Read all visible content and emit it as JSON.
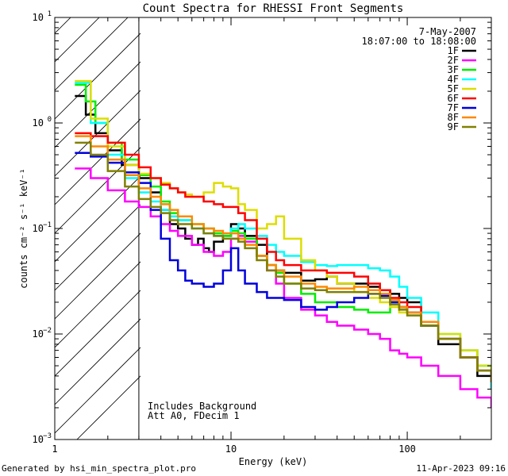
{
  "chart_data": {
    "type": "line",
    "title": "Count Spectra for RHESSI Front Segments",
    "xlabel": "Energy (keV)",
    "ylabel": "counts cm⁻² s⁻¹ keV⁻¹",
    "xscale": "log",
    "yscale": "log",
    "xlim": [
      1,
      300
    ],
    "ylim": [
      0.001,
      10
    ],
    "x_ticks": [
      {
        "value": 1,
        "label": "1"
      },
      {
        "value": 10,
        "label": "10"
      },
      {
        "value": 100,
        "label": "100"
      }
    ],
    "y_ticks": [
      {
        "value": 0.001,
        "base": "10",
        "exp": "−3"
      },
      {
        "value": 0.01,
        "base": "10",
        "exp": "−2"
      },
      {
        "value": 0.1,
        "base": "10",
        "exp": "−1"
      },
      {
        "value": 1,
        "base": "10",
        "exp": "0"
      },
      {
        "value": 10,
        "base": "10",
        "exp": "1"
      }
    ],
    "hatched_region": [
      1,
      3
    ],
    "date_text": "7-May-2007",
    "time_range_text": "18:07:00 to 18:08:00",
    "notes": [
      "Includes Background",
      "Att A0, FDecim 1"
    ],
    "footer_left": "Generated by hsi_min_spectra_plot.pro",
    "footer_right": "11-Apr-2023 09:16",
    "series": [
      {
        "name": "1F",
        "color": "#000000",
        "x": [
          1.3,
          1.5,
          1.7,
          2.0,
          2.4,
          3.0,
          3.5,
          4.0,
          4.5,
          5.0,
          5.5,
          6.0,
          6.5,
          7.0,
          7.5,
          8.0,
          9.0,
          10.0,
          11.0,
          12.0,
          14.0,
          16.0,
          18.0,
          20.0,
          25.0,
          30.0,
          35.0,
          40.0,
          50.0,
          60.0,
          70.0,
          80.0,
          90.0,
          100.0,
          120.0,
          150.0,
          200.0,
          250.0,
          300.0
        ],
        "y": [
          1.8,
          1.2,
          0.8,
          0.55,
          0.4,
          0.3,
          0.22,
          0.15,
          0.11,
          0.1,
          0.08,
          0.07,
          0.08,
          0.065,
          0.06,
          0.075,
          0.085,
          0.11,
          0.1,
          0.085,
          0.07,
          0.045,
          0.04,
          0.038,
          0.032,
          0.033,
          0.035,
          0.03,
          0.03,
          0.028,
          0.026,
          0.024,
          0.022,
          0.02,
          0.012,
          0.008,
          0.006,
          0.004,
          0.003
        ]
      },
      {
        "name": "2F",
        "color": "#ff00ff",
        "x": [
          1.3,
          1.6,
          2.0,
          2.5,
          3.0,
          3.5,
          4.0,
          4.5,
          5.0,
          6.0,
          7.0,
          8.0,
          9.0,
          10.0,
          11.0,
          12.0,
          14.0,
          16.0,
          18.0,
          20.0,
          25.0,
          30.0,
          35.0,
          40.0,
          50.0,
          60.0,
          70.0,
          80.0,
          90.0,
          100.0,
          120.0,
          150.0,
          200.0,
          250.0,
          300.0
        ],
        "y": [
          0.37,
          0.3,
          0.23,
          0.18,
          0.16,
          0.13,
          0.11,
          0.095,
          0.085,
          0.07,
          0.06,
          0.055,
          0.06,
          0.08,
          0.085,
          0.075,
          0.055,
          0.04,
          0.03,
          0.022,
          0.017,
          0.015,
          0.013,
          0.012,
          0.011,
          0.01,
          0.009,
          0.007,
          0.0065,
          0.006,
          0.005,
          0.004,
          0.003,
          0.0025,
          0.002
        ]
      },
      {
        "name": "3F",
        "color": "#00ee00",
        "x": [
          1.3,
          1.5,
          1.7,
          2.0,
          2.4,
          3.0,
          3.5,
          4.0,
          4.5,
          5.0,
          6.0,
          7.0,
          8.0,
          9.0,
          10.0,
          11.0,
          12.0,
          14.0,
          16.0,
          18.0,
          20.0,
          25.0,
          30.0,
          35.0,
          40.0,
          50.0,
          60.0,
          70.0,
          80.0,
          90.0,
          100.0,
          120.0,
          150.0,
          200.0,
          250.0,
          300.0
        ],
        "y": [
          2.3,
          1.6,
          1.0,
          0.65,
          0.45,
          0.32,
          0.25,
          0.18,
          0.14,
          0.12,
          0.11,
          0.1,
          0.09,
          0.085,
          0.095,
          0.09,
          0.08,
          0.055,
          0.045,
          0.038,
          0.03,
          0.024,
          0.02,
          0.02,
          0.018,
          0.017,
          0.016,
          0.016,
          0.02,
          0.018,
          0.016,
          0.012,
          0.009,
          0.007,
          0.005,
          0.004
        ]
      },
      {
        "name": "4F",
        "color": "#00ffff",
        "x": [
          1.3,
          1.6,
          2.0,
          2.5,
          3.0,
          3.5,
          4.0,
          4.5,
          5.0,
          6.0,
          7.0,
          8.0,
          9.0,
          10.0,
          11.0,
          12.0,
          14.0,
          16.0,
          18.0,
          20.0,
          25.0,
          30.0,
          35.0,
          40.0,
          50.0,
          60.0,
          70.0,
          80.0,
          90.0,
          100.0,
          120.0,
          150.0,
          200.0,
          250.0,
          300.0
        ],
        "y": [
          2.4,
          1.0,
          0.5,
          0.3,
          0.22,
          0.18,
          0.15,
          0.13,
          0.12,
          0.1,
          0.09,
          0.085,
          0.09,
          0.1,
          0.11,
          0.1,
          0.085,
          0.07,
          0.06,
          0.055,
          0.048,
          0.045,
          0.044,
          0.045,
          0.045,
          0.042,
          0.04,
          0.035,
          0.028,
          0.022,
          0.016,
          0.01,
          0.007,
          0.005,
          0.003
        ]
      },
      {
        "name": "5F",
        "color": "#dddd00",
        "x": [
          1.3,
          1.6,
          2.0,
          2.5,
          3.0,
          3.5,
          4.0,
          4.5,
          5.0,
          5.5,
          6.0,
          7.0,
          8.0,
          9.0,
          10.0,
          11.0,
          12.0,
          14.0,
          16.0,
          18.0,
          20.0,
          25.0,
          30.0,
          35.0,
          40.0,
          50.0,
          60.0,
          70.0,
          80.0,
          90.0,
          100.0,
          120.0,
          150.0,
          200.0,
          250.0,
          300.0
        ],
        "y": [
          2.5,
          1.1,
          0.6,
          0.4,
          0.33,
          0.3,
          0.27,
          0.24,
          0.22,
          0.21,
          0.2,
          0.22,
          0.27,
          0.25,
          0.24,
          0.17,
          0.15,
          0.1,
          0.11,
          0.13,
          0.08,
          0.05,
          0.04,
          0.035,
          0.03,
          0.025,
          0.022,
          0.02,
          0.018,
          0.016,
          0.015,
          0.012,
          0.01,
          0.007,
          0.005,
          0.004
        ]
      },
      {
        "name": "6F",
        "color": "#ff0000",
        "x": [
          1.3,
          1.6,
          2.0,
          2.5,
          3.0,
          3.5,
          4.0,
          4.5,
          5.0,
          5.5,
          6.0,
          7.0,
          8.0,
          9.0,
          10.0,
          11.0,
          12.0,
          14.0,
          16.0,
          18.0,
          20.0,
          25.0,
          30.0,
          35.0,
          40.0,
          50.0,
          60.0,
          70.0,
          80.0,
          90.0,
          100.0,
          120.0,
          150.0,
          200.0,
          250.0,
          300.0
        ],
        "y": [
          0.8,
          0.75,
          0.65,
          0.5,
          0.38,
          0.3,
          0.26,
          0.24,
          0.22,
          0.2,
          0.2,
          0.18,
          0.17,
          0.16,
          0.16,
          0.14,
          0.12,
          0.08,
          0.06,
          0.05,
          0.045,
          0.04,
          0.04,
          0.038,
          0.038,
          0.035,
          0.03,
          0.026,
          0.022,
          0.02,
          0.018,
          0.013,
          0.009,
          0.006,
          0.0045,
          0.0035
        ]
      },
      {
        "name": "7F",
        "color": "#0000dd",
        "x": [
          1.3,
          1.6,
          2.0,
          2.5,
          3.0,
          3.5,
          4.0,
          4.5,
          5.0,
          5.5,
          6.0,
          7.0,
          8.0,
          9.0,
          10.0,
          11.0,
          12.0,
          14.0,
          16.0,
          18.0,
          20.0,
          25.0,
          30.0,
          35.0,
          40.0,
          50.0,
          60.0,
          70.0,
          80.0,
          90.0,
          100.0,
          120.0,
          150.0,
          200.0,
          250.0,
          300.0
        ],
        "y": [
          0.52,
          0.48,
          0.42,
          0.34,
          0.27,
          0.15,
          0.08,
          0.05,
          0.04,
          0.032,
          0.03,
          0.028,
          0.03,
          0.04,
          0.065,
          0.04,
          0.03,
          0.025,
          0.022,
          0.022,
          0.021,
          0.018,
          0.017,
          0.018,
          0.02,
          0.022,
          0.024,
          0.023,
          0.02,
          0.018,
          0.016,
          0.012,
          0.009,
          0.006,
          0.0045,
          0.0035
        ]
      },
      {
        "name": "8F",
        "color": "#ff8800",
        "x": [
          1.3,
          1.6,
          2.0,
          2.5,
          3.0,
          3.5,
          4.0,
          4.5,
          5.0,
          6.0,
          7.0,
          8.0,
          9.0,
          10.0,
          11.0,
          12.0,
          14.0,
          16.0,
          18.0,
          20.0,
          25.0,
          30.0,
          35.0,
          40.0,
          50.0,
          60.0,
          70.0,
          80.0,
          90.0,
          100.0,
          120.0,
          150.0,
          200.0,
          250.0,
          300.0
        ],
        "y": [
          0.75,
          0.6,
          0.45,
          0.32,
          0.24,
          0.2,
          0.17,
          0.15,
          0.13,
          0.11,
          0.1,
          0.095,
          0.09,
          0.09,
          0.08,
          0.07,
          0.055,
          0.045,
          0.04,
          0.035,
          0.03,
          0.028,
          0.027,
          0.027,
          0.028,
          0.026,
          0.024,
          0.021,
          0.018,
          0.016,
          0.013,
          0.009,
          0.006,
          0.0045,
          0.0035
        ]
      },
      {
        "name": "9F",
        "color": "#808000",
        "x": [
          1.3,
          1.6,
          2.0,
          2.5,
          3.0,
          3.5,
          4.0,
          4.5,
          5.0,
          6.0,
          7.0,
          8.0,
          9.0,
          10.0,
          11.0,
          12.0,
          14.0,
          16.0,
          18.0,
          20.0,
          25.0,
          30.0,
          35.0,
          40.0,
          50.0,
          60.0,
          70.0,
          80.0,
          90.0,
          100.0,
          120.0,
          150.0,
          200.0,
          250.0,
          300.0
        ],
        "y": [
          0.65,
          0.5,
          0.35,
          0.25,
          0.19,
          0.16,
          0.14,
          0.12,
          0.11,
          0.1,
          0.09,
          0.085,
          0.08,
          0.08,
          0.075,
          0.065,
          0.05,
          0.04,
          0.035,
          0.03,
          0.027,
          0.026,
          0.025,
          0.025,
          0.025,
          0.024,
          0.022,
          0.019,
          0.017,
          0.015,
          0.012,
          0.009,
          0.006,
          0.0045,
          0.0035
        ]
      }
    ]
  }
}
